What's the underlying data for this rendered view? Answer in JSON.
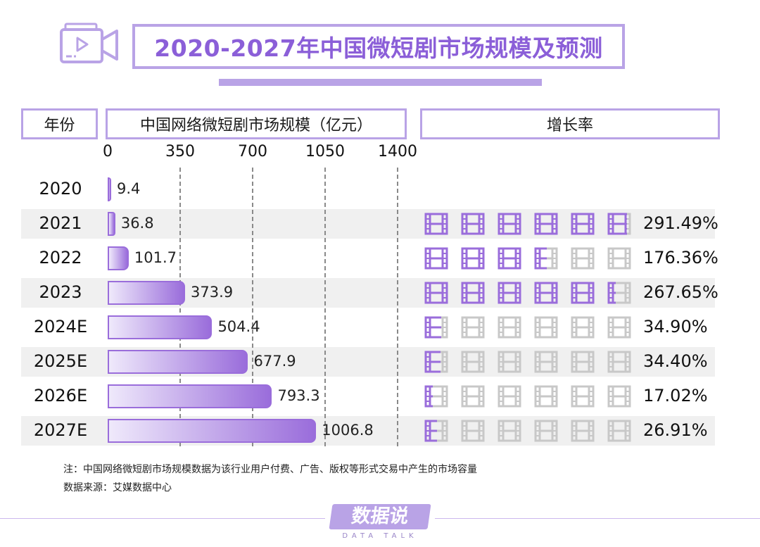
{
  "title": "2020-2027年中国微短剧市场规模及预测",
  "headers": {
    "year": "年份",
    "scale": "中国网络微短剧市场规模（亿元）",
    "growth": "增长率"
  },
  "colors": {
    "accent": "#b9a3e6",
    "bar_dark": "#9a6ddb",
    "bar_light": "#efe9fb",
    "film_on": "#9a6ddb",
    "film_off": "#c8c8c8"
  },
  "chart_data": {
    "type": "bar",
    "orientation": "horizontal",
    "categories": [
      "2020",
      "2021",
      "2022",
      "2023",
      "2024E",
      "2025E",
      "2026E",
      "2027E"
    ],
    "values": [
      9.4,
      36.8,
      101.7,
      373.9,
      504.4,
      677.9,
      793.3,
      1006.8
    ],
    "value_labels": [
      "9.4",
      "36.8",
      "101.7",
      "373.9",
      "504.4",
      "677.9",
      "793.3",
      "1006.8"
    ],
    "xlim": [
      0,
      1400
    ],
    "xticks": [
      "0",
      "350",
      "700",
      "1050",
      "1400"
    ],
    "grid": "dashed vertical lines at 350, 700, 1050, 1400",
    "growth_rate": {
      "categories": [
        "2021",
        "2022",
        "2023",
        "2024E",
        "2025E",
        "2026E",
        "2027E"
      ],
      "values": [
        291.49,
        176.36,
        267.65,
        34.9,
        34.4,
        17.02,
        26.91
      ],
      "labels": [
        "291.49%",
        "176.36%",
        "267.65%",
        "34.90%",
        "34.40%",
        "17.02%",
        "26.91%"
      ],
      "icon_scale_max": 300
    }
  },
  "notes": {
    "note": "注：中国网络微短剧市场规模数据为该行业用户付费、广告、版权等形式交易中产生的市场容量",
    "source": "数据来源：艾媒数据中心"
  },
  "logo": {
    "main": "数据说",
    "sub": "DATA TALK"
  },
  "icons": {
    "header": "video-camera-icon",
    "growth": "film-strip-icon"
  }
}
